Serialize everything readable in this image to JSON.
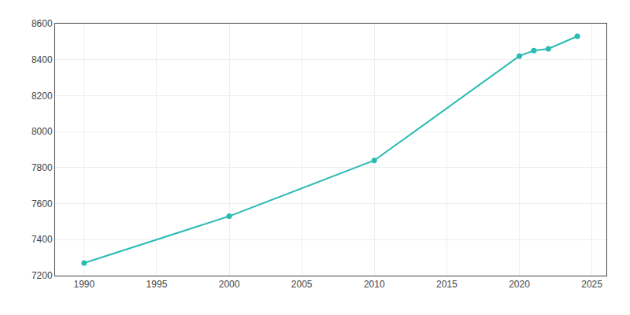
{
  "chart_data": {
    "type": "line",
    "x": [
      1990,
      2000,
      2010,
      2020,
      2021,
      2022,
      2024
    ],
    "values": [
      7270,
      7530,
      7840,
      8420,
      8450,
      8460,
      8530
    ],
    "color": "#2abbb5",
    "marker": "circle",
    "xlim": [
      1988,
      2026
    ],
    "ylim": [
      7200,
      8600
    ],
    "xticks": [
      1990,
      1995,
      2000,
      2005,
      2010,
      2015,
      2020,
      2025
    ],
    "yticks": [
      7200,
      7400,
      7600,
      7800,
      8000,
      8200,
      8400,
      8600
    ],
    "grid": true
  }
}
